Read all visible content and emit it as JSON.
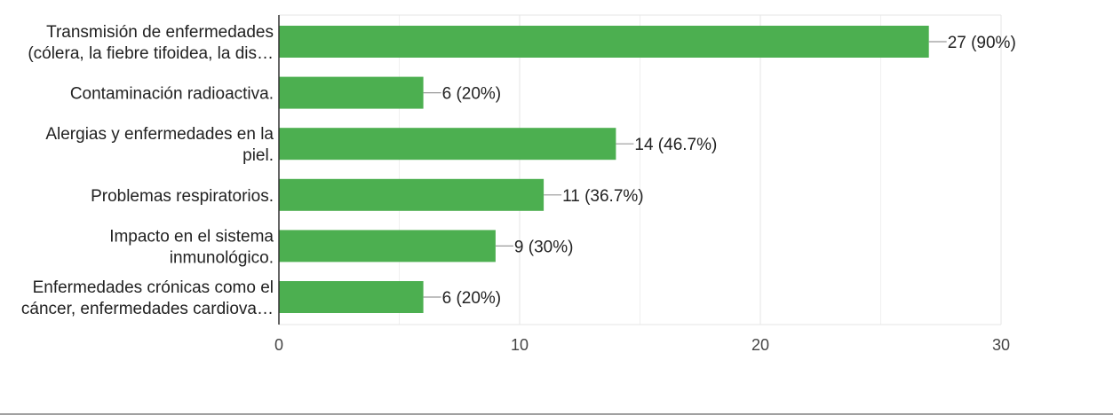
{
  "chart_data": {
    "type": "bar",
    "orientation": "horizontal",
    "categories": [
      [
        "Transmisión de enfermedades",
        "(cólera, la fiebre tifoidea, la dis…"
      ],
      [
        "Contaminación radioactiva."
      ],
      [
        "Alergias y enfermedades en la",
        "piel."
      ],
      [
        "Problemas respiratorios."
      ],
      [
        "Impacto en el sistema",
        "inmunológico."
      ],
      [
        "Enfermedades crónicas como el",
        "cáncer, enfermedades cardiova…"
      ]
    ],
    "values": [
      27,
      6,
      14,
      11,
      9,
      6
    ],
    "data_labels": [
      "27 (90%)",
      "6 (20%)",
      "14 (46.7%)",
      "11 (36.7%)",
      "9 (30%)",
      "6 (20%)"
    ],
    "xlim": [
      0,
      30
    ],
    "major_ticks": [
      0,
      10,
      20,
      30
    ],
    "minor_grid_step": 5,
    "grid": true,
    "legend": "none",
    "colors": {
      "bar": "#4caf50",
      "grid": "#e6e6e6",
      "axis": "#333333",
      "leader": "#999999"
    }
  }
}
